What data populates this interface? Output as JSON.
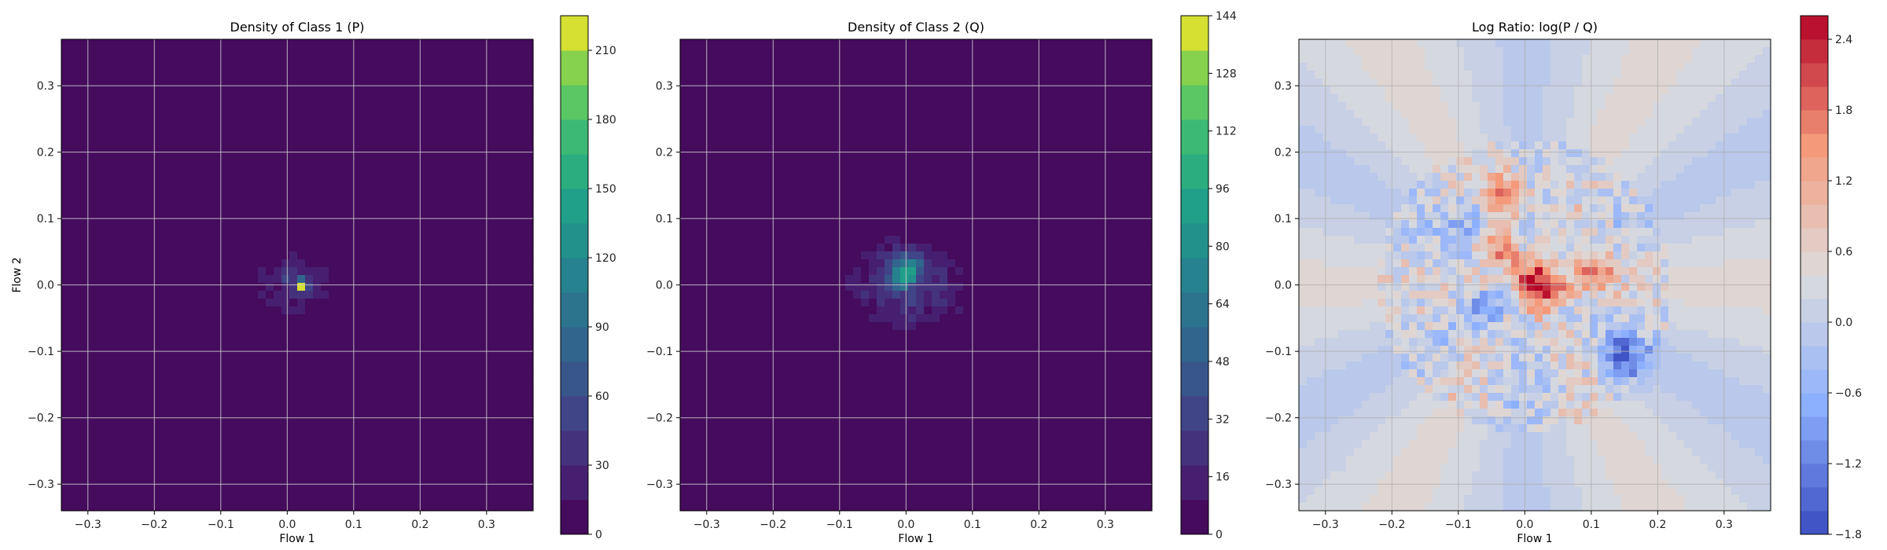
{
  "figure": {
    "width": 2400,
    "height": 700
  },
  "chart_data": [
    {
      "type": "heatmap",
      "title": "Density of Class 1 (P)",
      "xlabel": "Flow 1",
      "ylabel": "Flow 2",
      "xlim": [
        -0.34,
        0.37
      ],
      "ylim": [
        -0.34,
        0.37
      ],
      "xticks": [
        -0.3,
        -0.2,
        -0.1,
        0.0,
        0.1,
        0.2,
        0.3
      ],
      "yticks": [
        -0.3,
        -0.2,
        -0.1,
        0.0,
        0.1,
        0.2,
        0.3
      ],
      "xtick_labels": [
        "−0.3",
        "−0.2",
        "−0.1",
        "0.0",
        "0.1",
        "0.2",
        "0.3"
      ],
      "ytick_labels": [
        "−0.3",
        "−0.2",
        "−0.1",
        "0.0",
        "0.1",
        "0.2",
        "0.3"
      ],
      "grid": true,
      "colormap": "viridis",
      "colorbar": {
        "min": 0,
        "max": 225,
        "ticks": [
          0,
          30,
          60,
          90,
          120,
          150,
          180,
          210
        ],
        "tick_labels": [
          "0",
          "30",
          "60",
          "90",
          "120",
          "150",
          "180",
          "210"
        ]
      },
      "blob": {
        "center": [
          0.01,
          0.0
        ],
        "spread": [
          0.065,
          0.055
        ],
        "peak": {
          "x": 0.022,
          "y": 0.0,
          "value": 225
        }
      }
    },
    {
      "type": "heatmap",
      "title": "Density of Class 2 (Q)",
      "xlabel": "Flow 1",
      "ylabel": "",
      "xlim": [
        -0.34,
        0.37
      ],
      "ylim": [
        -0.34,
        0.37
      ],
      "xticks": [
        -0.3,
        -0.2,
        -0.1,
        0.0,
        0.1,
        0.2,
        0.3
      ],
      "yticks": [
        -0.3,
        -0.2,
        -0.1,
        0.0,
        0.1,
        0.2,
        0.3
      ],
      "xtick_labels": [
        "−0.3",
        "−0.2",
        "−0.1",
        "0.0",
        "0.1",
        "0.2",
        "0.3"
      ],
      "ytick_labels": [
        "−0.3",
        "−0.2",
        "−0.1",
        "0.0",
        "0.1",
        "0.2",
        "0.3"
      ],
      "grid": true,
      "colormap": "viridis",
      "colorbar": {
        "min": 0,
        "max": 144,
        "ticks": [
          0,
          16,
          32,
          48,
          64,
          80,
          96,
          112,
          128,
          144
        ],
        "tick_labels": [
          "0",
          "16",
          "32",
          "48",
          "64",
          "80",
          "96",
          "112",
          "128",
          "144"
        ]
      },
      "blob": {
        "center": [
          0.0,
          0.0
        ],
        "spread": [
          0.1,
          0.08
        ],
        "peak": {
          "x": 0.0,
          "y": 0.02,
          "value": 100
        }
      }
    },
    {
      "type": "heatmap",
      "title": "Log Ratio: log(P / Q)",
      "xlabel": "Flow 1",
      "ylabel": "",
      "xlim": [
        -0.34,
        0.37
      ],
      "ylim": [
        -0.34,
        0.37
      ],
      "xticks": [
        -0.3,
        -0.2,
        -0.1,
        0.0,
        0.1,
        0.2,
        0.3
      ],
      "yticks": [
        -0.3,
        -0.2,
        -0.1,
        0.0,
        0.1,
        0.2,
        0.3
      ],
      "xtick_labels": [
        "−0.3",
        "−0.2",
        "−0.1",
        "0.0",
        "0.1",
        "0.2",
        "0.3"
      ],
      "ytick_labels": [
        "−0.3",
        "−0.2",
        "−0.1",
        "0.0",
        "0.1",
        "0.2",
        "0.3"
      ],
      "grid": true,
      "colormap": "coolwarm",
      "colorbar": {
        "min": -1.8,
        "max": 2.6,
        "ticks": [
          -1.8,
          -1.2,
          -0.6,
          0.0,
          0.6,
          1.2,
          1.8,
          2.4
        ],
        "tick_labels": [
          "−1.8",
          "−1.2",
          "−0.6",
          "0.0",
          "0.6",
          "1.2",
          "1.8",
          "2.4"
        ]
      },
      "hotspots": [
        {
          "x": 0.02,
          "y": 0.0,
          "value": 2.5
        },
        {
          "x": -0.03,
          "y": 0.14,
          "value": 1.5
        },
        {
          "x": 0.1,
          "y": 0.03,
          "value": 1.4
        },
        {
          "x": -0.04,
          "y": 0.05,
          "value": 1.3
        },
        {
          "x": 0.15,
          "y": -0.11,
          "value": -1.5
        },
        {
          "x": -0.05,
          "y": -0.03,
          "value": -0.9
        },
        {
          "x": -0.08,
          "y": 0.1,
          "value": -0.8
        }
      ]
    }
  ]
}
